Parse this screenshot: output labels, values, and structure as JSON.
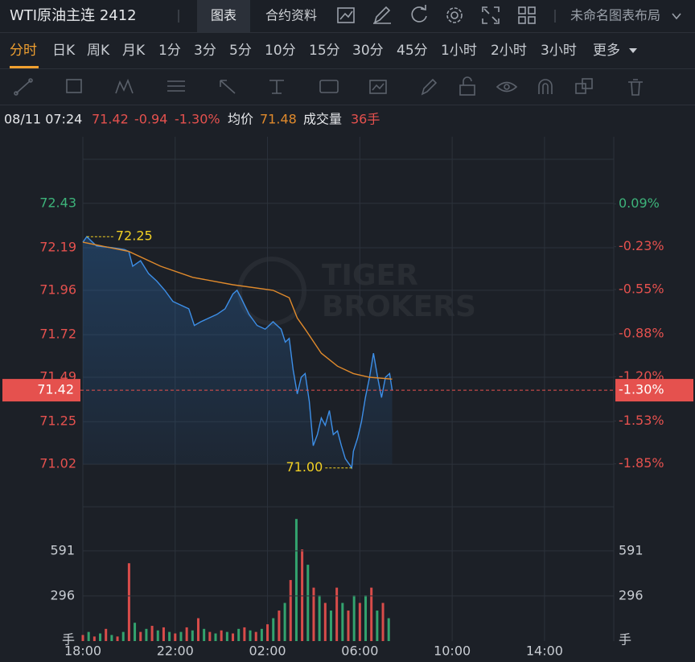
{
  "header": {
    "title": "WTI原油主连 2412",
    "tabs": [
      "图表",
      "合约资料"
    ],
    "layout_name": "未命名图表布局"
  },
  "periods": [
    "分时",
    "日K",
    "周K",
    "月K",
    "1分",
    "3分",
    "5分",
    "10分",
    "15分",
    "30分",
    "45分",
    "1小时",
    "2小时",
    "3小时",
    "更多"
  ],
  "quote": {
    "time": "08/11 07:24",
    "price": "71.42",
    "change": "-0.94",
    "change_pct": "-1.30%",
    "avg_label": "均价",
    "avg": "71.48",
    "volume_label": "成交量",
    "volume": "36手"
  },
  "watermark": [
    "TIGER",
    "BROKERS"
  ],
  "chart_data": [
    {
      "type": "line",
      "xlim": [
        0,
        23
      ],
      "ylim": [
        70.79,
        72.79
      ],
      "yticks": [
        72.43,
        72.19,
        71.96,
        71.72,
        71.49,
        71.25,
        71.02
      ],
      "y2lim": [
        -2.17,
        0.59
      ],
      "y2ticks": [
        {
          "value": 0.09,
          "label": "0.09%"
        },
        {
          "value": -0.23,
          "label": "-0.23%"
        },
        {
          "value": -0.55,
          "label": "-0.55%"
        },
        {
          "value": -0.88,
          "label": "-0.88%"
        },
        {
          "value": -1.2,
          "label": "-1.20%"
        },
        {
          "value": -1.53,
          "label": "-1.53%"
        },
        {
          "value": -1.85,
          "label": "-1.85%"
        }
      ],
      "grid": true,
      "up_color": "#3db37a",
      "down_color": "#e5514e",
      "series": [
        {
          "color": "#3d8fe8",
          "x": [
            0,
            0.17,
            0.59,
            1.29,
            1.81,
            1.99,
            2.16,
            2.5,
            2.85,
            3.2,
            3.55,
            3.9,
            4.24,
            4.59,
            4.83,
            5.11,
            5.46,
            5.81,
            6.16,
            6.5,
            6.68,
            6.85,
            7.2,
            7.55,
            7.9,
            8.24,
            8.59,
            8.77,
            8.94,
            9.11,
            9.29,
            9.46,
            9.63,
            9.81,
            9.98,
            10.16,
            10.33,
            10.5,
            10.68,
            10.85,
            11.03,
            11.2,
            11.37,
            11.65,
            11.72,
            11.9,
            12.07,
            12.24,
            12.42,
            12.59,
            12.77,
            12.94,
            13.11,
            13.29,
            13.4
          ],
          "values": [
            72.22,
            72.25,
            72.2,
            72.19,
            72.18,
            72.17,
            72.09,
            72.12,
            72.05,
            72.01,
            71.96,
            71.9,
            71.88,
            71.86,
            71.77,
            71.79,
            71.81,
            71.83,
            71.86,
            71.94,
            71.96,
            71.92,
            71.83,
            71.77,
            71.75,
            71.79,
            71.75,
            71.68,
            71.7,
            71.53,
            71.4,
            71.49,
            71.51,
            71.36,
            71.12,
            71.18,
            71.27,
            71.23,
            71.31,
            71.18,
            71.2,
            71.12,
            71.05,
            71.0,
            71.09,
            71.16,
            71.25,
            71.38,
            71.49,
            71.62,
            71.49,
            71.38,
            71.49,
            71.51,
            71.42
          ]
        },
        {
          "color": "#e08a2c",
          "x": [
            0,
            1.99,
            3.37,
            4.76,
            6.5,
            8.24,
            8.94,
            9.29,
            9.63,
            10.33,
            11.03,
            11.72,
            12.42,
            13.4
          ],
          "values": [
            72.22,
            72.17,
            72.09,
            72.03,
            71.99,
            71.96,
            71.92,
            71.81,
            71.75,
            71.62,
            71.55,
            71.51,
            71.49,
            71.48
          ]
        }
      ],
      "last": {
        "value": 71.42,
        "pct": {
          "value": -1.3,
          "label": "-1.30%"
        },
        "color": "#e5514e"
      },
      "annotations": [
        {
          "x": 0.17,
          "value": 72.25,
          "color": "#f2d024"
        },
        {
          "x": 11.65,
          "value": 71,
          "label": "71.00",
          "color": "#f2d024"
        }
      ]
    },
    {
      "type": "bar",
      "xlim": [
        0,
        23
      ],
      "ylim": [
        0,
        880
      ],
      "yticks": [
        296,
        591
      ],
      "unit": "手",
      "xticks": [
        {
          "value": 0,
          "label": "18:00"
        },
        {
          "value": 4,
          "label": "22:00"
        },
        {
          "value": 8,
          "label": "02:00"
        },
        {
          "value": 12,
          "label": "06:00"
        },
        {
          "value": 16,
          "label": "10:00"
        },
        {
          "value": 20,
          "label": "14:00"
        }
      ],
      "colors": [
        "#d94c4a",
        "#33a36e"
      ],
      "x": [
        0,
        0.25,
        0.5,
        0.75,
        1,
        1.25,
        1.5,
        1.75,
        2,
        2.25,
        2.5,
        2.75,
        3,
        3.25,
        3.5,
        3.75,
        4,
        4.25,
        4.5,
        4.75,
        5,
        5.25,
        5.5,
        5.75,
        6,
        6.25,
        6.5,
        6.75,
        7,
        7.25,
        7.5,
        7.75,
        8,
        8.25,
        8.5,
        8.75,
        9,
        9.25,
        9.5,
        9.75,
        10,
        10.25,
        10.5,
        10.75,
        11,
        11.25,
        11.5,
        11.75,
        12,
        12.25,
        12.5,
        12.75,
        13,
        13.25
      ],
      "values": [
        40,
        60,
        30,
        50,
        80,
        40,
        30,
        60,
        510,
        120,
        60,
        80,
        100,
        70,
        90,
        60,
        50,
        60,
        90,
        70,
        150,
        80,
        60,
        50,
        70,
        60,
        50,
        80,
        90,
        70,
        60,
        80,
        110,
        150,
        200,
        250,
        400,
        800,
        600,
        500,
        350,
        300,
        250,
        200,
        350,
        250,
        200,
        300,
        250,
        300,
        350,
        200,
        250,
        150
      ]
    }
  ]
}
